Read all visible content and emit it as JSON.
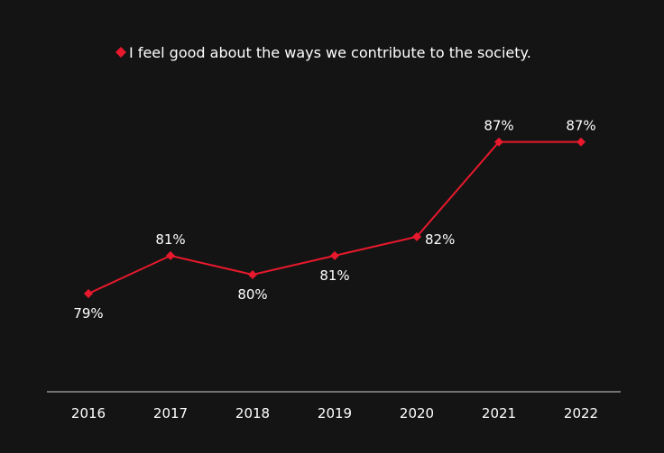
{
  "chart_data": {
    "type": "line",
    "title": "",
    "xlabel": "",
    "ylabel": "",
    "categories": [
      "2016",
      "2017",
      "2018",
      "2019",
      "2020",
      "2021",
      "2022"
    ],
    "series": [
      {
        "name": "I feel good about the ways we contribute to the society.",
        "values": [
          79,
          81,
          80,
          81,
          82,
          87,
          87
        ],
        "labels": [
          "79%",
          "81%",
          "80%",
          "81%",
          "82%",
          "87%",
          "87%"
        ],
        "color": "#e8192c"
      }
    ],
    "ylim": [
      75,
      89
    ],
    "legend": "top-center",
    "grid": false
  },
  "colors": {
    "background": "#141414",
    "text": "#ffffff",
    "axis": "#d0d0d0"
  }
}
